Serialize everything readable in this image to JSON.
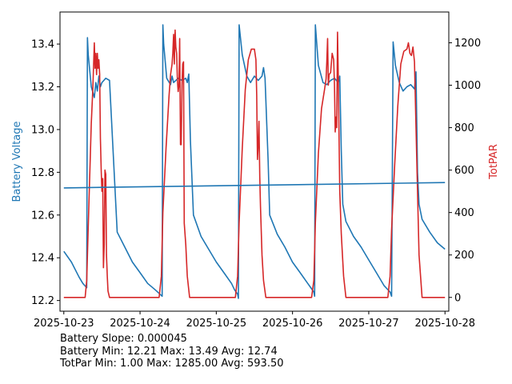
{
  "stats": {
    "line1": "Battery Slope: 0.000045",
    "line2": "Battery Min: 12.21 Max: 13.49 Avg: 12.74",
    "line3": "TotPar Min: 1.00 Max: 1285.00 Avg: 593.50"
  },
  "chart_data": {
    "type": "line",
    "xlabel": "",
    "ylabel_left": "Battery Voltage",
    "ylabel_right": "TotPAR",
    "colors": {
      "battery": "#1f77b4",
      "totpar": "#d62728",
      "trend": "#1f77b4"
    },
    "x_ticks": [
      "2025-10-23",
      "2025-10-24",
      "2025-10-25",
      "2025-10-26",
      "2025-10-27",
      "2025-10-28"
    ],
    "xlim_days": [
      -0.05,
      5.05
    ],
    "y_left": {
      "lim": [
        12.15,
        13.55
      ],
      "ticks": [
        "12.2",
        "12.4",
        "12.6",
        "12.8",
        "13.0",
        "13.2",
        "13.4"
      ]
    },
    "y_right": {
      "lim": [
        -65,
        1345
      ],
      "ticks": [
        "0",
        "200",
        "400",
        "600",
        "800",
        "1000",
        "1200"
      ]
    },
    "grid": false,
    "series": [
      {
        "name": "Battery Voltage",
        "axis": "left",
        "x": [
          0,
          0.1,
          0.2,
          0.25,
          0.3,
          0.31,
          0.32,
          0.36,
          0.4,
          0.42,
          0.44,
          0.46,
          0.48,
          0.5,
          0.55,
          0.6,
          0.7,
          0.8,
          0.9,
          1.0,
          1.1,
          1.2,
          1.26,
          1.29,
          1.3,
          1.31,
          1.35,
          1.4,
          1.42,
          1.44,
          1.5,
          1.55,
          1.6,
          1.62,
          1.64,
          1.66,
          1.7,
          1.8,
          1.9,
          2.0,
          2.1,
          2.2,
          2.24,
          2.28,
          2.29,
          2.3,
          2.34,
          2.4,
          2.45,
          2.5,
          2.55,
          2.6,
          2.62,
          2.64,
          2.68,
          2.7,
          2.8,
          2.9,
          3.0,
          3.1,
          3.2,
          3.24,
          3.28,
          3.29,
          3.3,
          3.34,
          3.4,
          3.45,
          3.5,
          3.55,
          3.6,
          3.62,
          3.64,
          3.66,
          3.7,
          3.8,
          3.9,
          4.0,
          4.1,
          4.2,
          4.28,
          4.3,
          4.32,
          4.35,
          4.4,
          4.45,
          4.5,
          4.55,
          4.6,
          4.62,
          4.64,
          4.66,
          4.7,
          4.8,
          4.9,
          5.0
        ],
        "values": [
          12.43,
          12.38,
          12.31,
          12.28,
          12.26,
          13.43,
          13.35,
          13.2,
          13.15,
          13.22,
          13.18,
          13.25,
          13.2,
          13.22,
          13.24,
          13.23,
          12.52,
          12.45,
          12.38,
          12.33,
          12.28,
          12.25,
          12.23,
          12.22,
          13.49,
          13.4,
          13.24,
          13.21,
          13.25,
          13.22,
          13.24,
          13.23,
          13.24,
          13.22,
          13.26,
          12.95,
          12.6,
          12.5,
          12.44,
          12.38,
          12.33,
          12.28,
          12.25,
          12.23,
          12.21,
          13.49,
          13.35,
          13.25,
          13.22,
          13.25,
          13.23,
          13.25,
          13.29,
          13.24,
          12.85,
          12.6,
          12.51,
          12.45,
          12.38,
          12.33,
          12.28,
          12.26,
          12.24,
          12.22,
          13.49,
          13.3,
          13.22,
          13.21,
          13.23,
          13.24,
          13.22,
          13.25,
          12.9,
          12.65,
          12.57,
          12.5,
          12.45,
          12.39,
          12.33,
          12.27,
          12.24,
          12.22,
          13.41,
          13.3,
          13.22,
          13.18,
          13.2,
          13.21,
          13.19,
          13.27,
          12.8,
          12.65,
          12.58,
          12.52,
          12.47,
          12.44
        ]
      },
      {
        "name": "TotPAR",
        "axis": "right",
        "x": [
          0,
          0.28,
          0.3,
          0.33,
          0.36,
          0.38,
          0.4,
          0.41,
          0.42,
          0.43,
          0.44,
          0.45,
          0.46,
          0.47,
          0.48,
          0.49,
          0.5,
          0.51,
          0.52,
          0.53,
          0.54,
          0.55,
          0.56,
          0.57,
          0.58,
          0.6,
          0.62,
          0.65,
          0.7,
          1.25,
          1.28,
          1.3,
          1.34,
          1.38,
          1.4,
          1.42,
          1.43,
          1.44,
          1.45,
          1.46,
          1.47,
          1.48,
          1.49,
          1.5,
          1.51,
          1.52,
          1.53,
          1.54,
          1.55,
          1.56,
          1.57,
          1.58,
          1.6,
          1.62,
          1.65,
          1.7,
          2.25,
          2.28,
          2.3,
          2.34,
          2.38,
          2.42,
          2.46,
          2.5,
          2.52,
          2.53,
          2.54,
          2.55,
          2.56,
          2.57,
          2.58,
          2.6,
          2.62,
          2.65,
          2.7,
          3.25,
          3.28,
          3.3,
          3.34,
          3.38,
          3.42,
          3.44,
          3.45,
          3.46,
          3.47,
          3.48,
          3.5,
          3.52,
          3.54,
          3.55,
          3.56,
          3.57,
          3.58,
          3.59,
          3.6,
          3.62,
          3.64,
          3.67,
          3.7,
          4.25,
          4.28,
          4.3,
          4.34,
          4.38,
          4.42,
          4.46,
          4.5,
          4.52,
          4.54,
          4.56,
          4.58,
          4.6,
          4.62,
          4.66,
          4.7,
          5.0
        ],
        "values": [
          0,
          0,
          80,
          450,
          820,
          980,
          1200,
          1080,
          1150,
          1050,
          1150,
          1080,
          1120,
          1050,
          750,
          600,
          500,
          560,
          140,
          250,
          600,
          580,
          200,
          100,
          30,
          0,
          0,
          0,
          0,
          0,
          100,
          400,
          700,
          950,
          1050,
          1100,
          1150,
          1240,
          1100,
          1260,
          1180,
          1150,
          1020,
          970,
          1000,
          1220,
          720,
          720,
          1000,
          1100,
          1110,
          350,
          250,
          100,
          0,
          0,
          0,
          100,
          350,
          700,
          980,
          1120,
          1170,
          1170,
          1120,
          950,
          650,
          720,
          830,
          570,
          430,
          200,
          80,
          0,
          0,
          0,
          80,
          350,
          680,
          890,
          980,
          1030,
          1110,
          1220,
          1000,
          1050,
          1060,
          1150,
          1120,
          1000,
          780,
          850,
          800,
          1250,
          1050,
          500,
          300,
          100,
          0,
          0,
          100,
          320,
          620,
          900,
          1100,
          1160,
          1170,
          1200,
          1150,
          1140,
          1180,
          1110,
          800,
          200,
          0,
          0
        ]
      },
      {
        "name": "Battery Trend",
        "axis": "left",
        "x": [
          0,
          5
        ],
        "values": [
          12.727,
          12.752
        ]
      }
    ]
  }
}
